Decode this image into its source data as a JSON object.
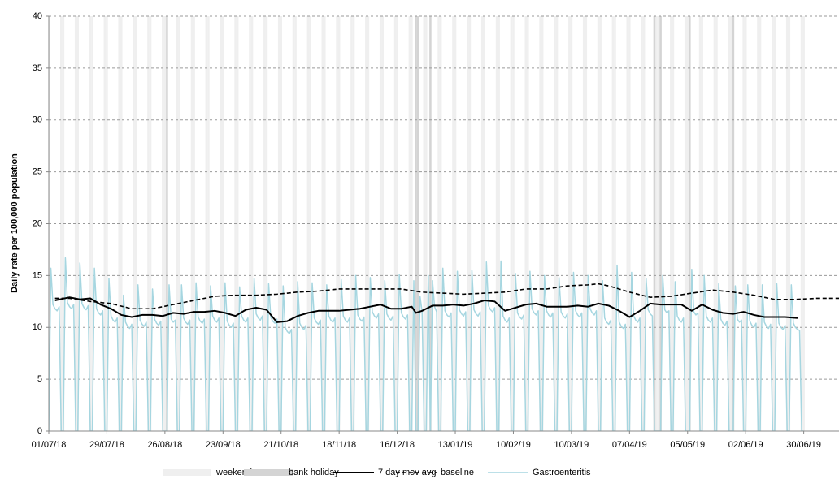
{
  "chart_data": {
    "type": "line",
    "y_label": "Daily rate per 100,000 population",
    "xlim": [
      0,
      381
    ],
    "ylim": [
      0,
      40
    ],
    "yticks": [
      0,
      5,
      10,
      15,
      20,
      25,
      30,
      35,
      40
    ],
    "xticks": [
      {
        "value": 0,
        "label": "01/07/18"
      },
      {
        "value": 28,
        "label": "29/07/18"
      },
      {
        "value": 56,
        "label": "26/08/18"
      },
      {
        "value": 84,
        "label": "23/09/18"
      },
      {
        "value": 112,
        "label": "21/10/18"
      },
      {
        "value": 140,
        "label": "18/11/18"
      },
      {
        "value": 168,
        "label": "16/12/18"
      },
      {
        "value": 196,
        "label": "13/01/19"
      },
      {
        "value": 224,
        "label": "10/02/19"
      },
      {
        "value": 252,
        "label": "10/03/19"
      },
      {
        "value": 280,
        "label": "07/04/19"
      },
      {
        "value": 308,
        "label": "05/05/19"
      },
      {
        "value": 336,
        "label": "02/06/19"
      },
      {
        "value": 364,
        "label": "30/06/19"
      }
    ],
    "grid": true,
    "x": [
      0,
      1,
      2,
      3,
      4,
      5,
      6,
      7,
      8,
      9,
      10,
      11,
      12,
      13,
      14,
      15,
      16,
      17,
      18,
      19,
      20,
      21,
      22,
      23,
      24,
      25,
      26,
      27,
      28,
      29,
      30,
      31,
      32,
      33,
      34,
      35,
      36,
      37,
      38,
      39,
      40,
      41,
      42,
      43,
      44,
      45,
      46,
      47,
      48,
      49,
      50,
      51,
      52,
      53,
      54,
      55,
      56,
      57,
      58,
      59,
      60,
      61,
      62,
      63,
      64,
      65,
      66,
      67,
      68,
      69,
      70,
      71,
      72,
      73,
      74,
      75,
      76,
      77,
      78,
      79,
      80,
      81,
      82,
      83,
      84,
      85,
      86,
      87,
      88,
      89,
      90,
      91,
      92,
      93,
      94,
      95,
      96,
      97,
      98,
      99,
      100,
      101,
      102,
      103,
      104,
      105,
      106,
      107,
      108,
      109,
      110,
      111,
      112,
      113,
      114,
      115,
      116,
      117,
      118,
      119,
      120,
      121,
      122,
      123,
      124,
      125,
      126,
      127,
      128,
      129,
      130,
      131,
      132,
      133,
      134,
      135,
      136,
      137,
      138,
      139,
      140,
      141,
      142,
      143,
      144,
      145,
      146,
      147,
      148,
      149,
      150,
      151,
      152,
      153,
      154,
      155,
      156,
      157,
      158,
      159,
      160,
      161,
      162,
      163,
      164,
      165,
      166,
      167,
      168,
      169,
      170,
      171,
      172,
      173,
      174,
      175,
      176,
      177,
      178,
      179,
      180,
      181,
      182,
      183,
      184,
      185,
      186,
      187,
      188,
      189,
      190,
      191,
      192,
      193,
      194,
      195,
      196,
      197,
      198,
      199,
      200,
      201,
      202,
      203,
      204,
      205,
      206,
      207,
      208,
      209,
      210,
      211,
      212,
      213,
      214,
      215,
      216,
      217,
      218,
      219,
      220,
      221,
      222,
      223,
      224,
      225,
      226,
      227,
      228,
      229,
      230,
      231,
      232,
      233,
      234,
      235,
      236,
      237,
      238,
      239,
      240,
      241,
      242,
      243,
      244,
      245,
      246,
      247,
      248,
      249,
      250,
      251,
      252,
      253,
      254,
      255,
      256,
      257,
      258,
      259,
      260,
      261,
      262,
      263,
      264,
      265,
      266,
      267,
      268,
      269,
      270,
      271,
      272,
      273,
      274,
      275,
      276,
      277,
      278,
      279,
      280,
      281,
      282,
      283,
      284,
      285,
      286,
      287,
      288,
      289,
      290,
      291,
      292,
      293,
      294,
      295,
      296,
      297,
      298,
      299,
      300,
      301,
      302,
      303,
      304,
      305,
      306,
      307,
      308,
      309,
      310,
      311,
      312,
      313,
      314,
      315,
      316,
      317,
      318,
      319,
      320,
      321,
      322,
      323,
      324,
      325,
      326,
      327,
      328,
      329,
      330,
      331,
      332,
      333,
      334,
      335,
      336,
      337,
      338,
      339,
      340,
      341,
      342,
      343,
      344,
      345,
      346,
      347,
      348,
      349,
      350,
      351,
      352,
      353,
      354,
      355,
      356,
      357,
      358,
      359,
      360,
      361,
      362,
      363,
      364
    ],
    "bands": [
      {
        "name": "weekend",
        "color": "#efefef",
        "x": [
          0,
          6,
          7,
          13,
          14,
          20,
          21,
          27,
          28,
          34,
          35,
          41,
          42,
          48,
          49,
          55,
          56,
          62,
          63,
          69,
          70,
          76,
          77,
          83,
          84,
          90,
          91,
          97,
          98,
          104,
          105,
          111,
          112,
          118,
          119,
          125,
          126,
          132,
          133,
          139,
          140,
          146,
          147,
          153,
          154,
          160,
          161,
          167,
          168,
          174,
          175,
          181,
          182,
          188,
          189,
          195,
          196,
          202,
          203,
          209,
          210,
          216,
          217,
          223,
          224,
          230,
          231,
          237,
          238,
          244,
          245,
          251,
          252,
          258,
          259,
          265,
          266,
          272,
          273,
          279,
          280,
          286,
          287,
          293,
          294,
          300,
          301,
          307,
          308,
          314,
          315,
          321,
          322,
          328,
          329,
          335,
          336,
          342,
          343,
          349,
          350,
          356,
          357,
          363,
          364
        ]
      },
      {
        "name": "bank holiday",
        "color": "#d4d4d4",
        "x": [
          57,
          177,
          178,
          184,
          292,
          295,
          309,
          330
        ]
      }
    ],
    "series": [
      {
        "name": "7 day mov avg",
        "color": "#000000",
        "dashed": false,
        "width": 2,
        "x": [
          3,
          10,
          15,
          20,
          25,
          30,
          35,
          40,
          45,
          50,
          55,
          60,
          65,
          70,
          75,
          80,
          85,
          90,
          95,
          100,
          105,
          110,
          115,
          120,
          125,
          130,
          135,
          140,
          145,
          150,
          155,
          160,
          165,
          170,
          175,
          177,
          180,
          185,
          190,
          195,
          200,
          205,
          210,
          215,
          220,
          225,
          230,
          235,
          240,
          245,
          250,
          255,
          260,
          265,
          270,
          275,
          280,
          285,
          290,
          295,
          300,
          305,
          310,
          315,
          320,
          325,
          330,
          335,
          340,
          345,
          350,
          355,
          361
        ],
        "values": [
          12.6,
          12.9,
          12.7,
          12.8,
          12.2,
          11.8,
          11.2,
          11.0,
          11.2,
          11.2,
          11.1,
          11.4,
          11.3,
          11.5,
          11.5,
          11.6,
          11.4,
          11.1,
          11.7,
          11.9,
          11.7,
          10.5,
          10.6,
          11.1,
          11.4,
          11.6,
          11.6,
          11.6,
          11.7,
          11.8,
          12.0,
          12.2,
          11.8,
          11.8,
          12.0,
          11.4,
          11.6,
          12.1,
          12.1,
          12.2,
          12.1,
          12.3,
          12.6,
          12.5,
          11.6,
          11.9,
          12.2,
          12.3,
          12.0,
          12.0,
          12.0,
          12.1,
          12.0,
          12.3,
          12.1,
          11.6,
          11.0,
          11.6,
          12.3,
          12.2,
          12.2,
          12.2,
          11.6,
          12.2,
          11.7,
          11.4,
          11.3,
          11.5,
          11.2,
          11.0,
          11.0,
          11.0,
          10.9
        ]
      },
      {
        "name": "baseline",
        "color": "#000000",
        "dashed": true,
        "width": 1.6,
        "x": [
          3,
          10,
          20,
          30,
          40,
          50,
          60,
          70,
          80,
          90,
          100,
          110,
          120,
          130,
          140,
          150,
          160,
          170,
          180,
          190,
          200,
          210,
          220,
          230,
          240,
          250,
          260,
          265,
          270,
          280,
          290,
          300,
          310,
          320,
          330,
          340,
          350,
          360,
          370,
          381
        ],
        "values": [
          12.8,
          12.8,
          12.5,
          12.3,
          11.8,
          11.8,
          12.2,
          12.6,
          13.0,
          13.1,
          13.1,
          13.2,
          13.4,
          13.5,
          13.7,
          13.7,
          13.7,
          13.7,
          13.4,
          13.3,
          13.2,
          13.3,
          13.4,
          13.7,
          13.7,
          14.0,
          14.1,
          14.2,
          14.0,
          13.4,
          12.9,
          13.0,
          13.3,
          13.6,
          13.4,
          13.1,
          12.7,
          12.7,
          12.8,
          12.8
        ]
      },
      {
        "name": "Gastroenteritis",
        "color": "#a6d6e0",
        "dashed": false,
        "width": 1.5,
        "values": [
          0,
          15.7,
          12.2,
          11.8,
          11.6,
          12.0,
          0,
          0,
          16.7,
          12.4,
          12.0,
          11.8,
          12.2,
          0,
          0,
          16.2,
          12.3,
          11.9,
          11.7,
          12.1,
          0,
          0,
          15.7,
          11.8,
          11.4,
          11.2,
          11.6,
          0,
          0,
          14.7,
          11.1,
          10.7,
          10.5,
          10.9,
          0,
          0,
          13.1,
          10.5,
          10.1,
          9.9,
          10.3,
          0,
          0,
          14.1,
          10.7,
          10.3,
          10.1,
          10.5,
          0,
          0,
          13.7,
          10.8,
          10.4,
          10.2,
          10.6,
          0,
          0,
          0,
          14.1,
          10.8,
          10.5,
          10.7,
          0,
          0,
          14.1,
          10.9,
          10.5,
          10.3,
          10.7,
          0,
          0,
          14.3,
          11.0,
          10.6,
          10.4,
          10.8,
          0,
          0,
          14.0,
          11.1,
          10.7,
          10.5,
          10.9,
          0,
          0,
          14.3,
          10.6,
          10.2,
          10.0,
          10.4,
          0,
          0,
          13.9,
          11.1,
          10.7,
          10.5,
          10.9,
          0,
          0,
          14.7,
          11.3,
          10.9,
          10.7,
          11.1,
          0,
          0,
          14.2,
          11.0,
          10.6,
          10.4,
          10.8,
          0,
          0,
          14.0,
          10.0,
          9.6,
          9.4,
          9.8,
          0,
          0,
          14.4,
          10.4,
          10.0,
          9.8,
          10.2,
          0,
          0,
          14.3,
          10.9,
          10.5,
          10.3,
          10.7,
          0,
          0,
          14.1,
          11.1,
          10.7,
          10.5,
          10.9,
          0,
          0,
          14.6,
          11.1,
          10.7,
          10.5,
          10.9,
          0,
          0,
          15.0,
          11.2,
          10.8,
          10.6,
          11.0,
          0,
          0,
          14.8,
          11.5,
          11.1,
          10.9,
          11.3,
          0,
          0,
          14.5,
          11.3,
          10.9,
          10.7,
          11.1,
          0,
          0,
          15.1,
          11.4,
          11.0,
          10.8,
          11.2,
          0,
          0,
          14.5,
          0,
          0,
          13.0,
          11.5,
          0,
          0,
          15.0,
          0,
          14.5,
          12.0,
          11.5,
          0,
          0,
          15.7,
          11.6,
          11.2,
          11.0,
          11.4,
          0,
          0,
          15.4,
          11.7,
          11.3,
          11.1,
          11.5,
          0,
          0,
          15.5,
          11.7,
          11.3,
          11.1,
          11.5,
          0,
          0,
          16.3,
          12.1,
          11.7,
          11.5,
          11.9,
          0,
          0,
          16.4,
          11.1,
          10.7,
          10.5,
          10.9,
          0,
          0,
          15.2,
          11.4,
          11.0,
          10.8,
          11.2,
          0,
          0,
          15.4,
          11.8,
          11.4,
          11.2,
          11.6,
          0,
          0,
          15.0,
          11.6,
          11.2,
          11.0,
          11.4,
          0,
          0,
          14.8,
          11.5,
          11.1,
          10.9,
          11.3,
          0,
          0,
          15.3,
          11.6,
          11.2,
          11.0,
          11.4,
          0,
          0,
          15.0,
          11.8,
          11.4,
          11.2,
          11.6,
          0,
          0,
          14.5,
          10.9,
          10.5,
          10.3,
          10.7,
          0,
          0,
          16.0,
          10.5,
          10.1,
          9.9,
          10.3,
          0,
          0,
          15.3,
          11.1,
          10.7,
          10.5,
          10.9,
          0,
          0,
          14.7,
          11.7,
          11.3,
          11.1,
          0,
          0,
          0,
          0,
          15.0,
          11.7,
          11.4,
          11.6,
          0,
          0,
          14.4,
          11.1,
          10.7,
          10.5,
          10.9,
          0,
          0,
          0,
          15.6,
          11.5,
          11.2,
          11.4,
          0,
          0,
          15.0,
          11.1,
          10.7,
          10.5,
          10.9,
          0,
          0,
          14.2,
          10.8,
          10.4,
          10.2,
          10.6,
          0,
          0,
          0,
          14.0,
          10.8,
          10.5,
          10.7,
          0,
          0,
          14.1,
          10.6,
          10.2,
          10.0,
          10.4,
          0,
          0,
          14.1,
          10.5,
          10.1,
          9.9,
          10.3,
          0,
          0,
          14.2,
          10.4,
          10.0,
          9.8,
          10.2,
          0,
          0,
          14.1,
          10.4,
          10.0,
          9.8,
          9.7,
          0,
          0
        ]
      }
    ]
  }
}
